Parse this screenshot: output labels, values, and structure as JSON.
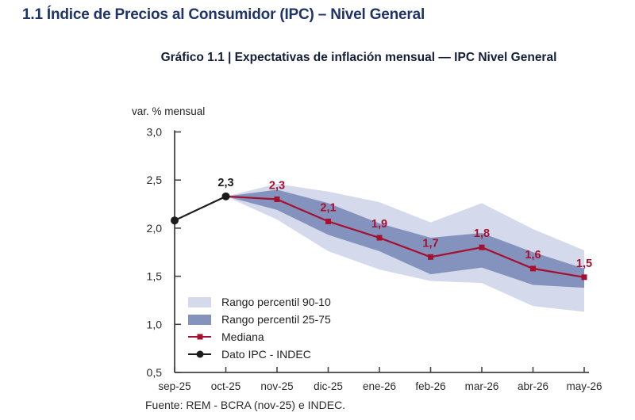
{
  "page": {
    "section_title": "1.1 Índice de Precios al Consumidor (IPC) – Nivel General",
    "chart_title": "Gráfico 1.1 | Expectativas de inflación mensual — IPC Nivel General",
    "source": "Fuente: REM - BCRA (nov-25) e INDEC."
  },
  "colors": {
    "title_navy": "#1e3468",
    "subtitle_navy": "#141d38",
    "band_light": "#d4daec",
    "band_dark": "#8393bd",
    "median_red": "#a61030",
    "ipc_black": "#1c1c1c",
    "axis_gray": "#454545",
    "tick_text": "#2b2b2b"
  },
  "chart_data": {
    "type": "line",
    "subtype": "fan-chart",
    "title": "Gráfico 1.1 | Expectativas de inflación mensual — IPC Nivel General",
    "xlabel": "",
    "ylabel": "var. % mensual",
    "ylim": [
      0.5,
      3.0
    ],
    "grid": false,
    "legend_position": "inside lower-left",
    "categories": [
      "sep-25",
      "oct-25",
      "nov-25",
      "dic-25",
      "ene-26",
      "feb-26",
      "mar-26",
      "abr-26",
      "may-26"
    ],
    "yticks": [
      {
        "value": 3.0,
        "label": "3,0"
      },
      {
        "value": 2.5,
        "label": "2,5"
      },
      {
        "value": 2.0,
        "label": "2,0"
      },
      {
        "value": 1.5,
        "label": "1,5"
      },
      {
        "value": 1.0,
        "label": "1,0"
      },
      {
        "value": 0.5,
        "label": "0,5"
      }
    ],
    "series": [
      {
        "name": "Mediana",
        "color": "#a61030",
        "marker": "square",
        "start_index": 1,
        "values": [
          2.33,
          2.3,
          2.07,
          1.9,
          1.7,
          1.8,
          1.58,
          1.49
        ],
        "point_labels": [
          null,
          "2,3",
          "2,1",
          "1,9",
          "1,7",
          "1,8",
          "1,6",
          "1,5"
        ]
      },
      {
        "name": "Dato IPC - INDEC",
        "color": "#1c1c1c",
        "marker": "circle",
        "start_index": 0,
        "values": [
          2.08,
          2.33
        ],
        "point_labels": [
          null,
          "2,3"
        ]
      }
    ],
    "bands": [
      {
        "name": "Rango percentil 90-10",
        "color": "#d4daec",
        "start_index": 1,
        "upper": [
          2.33,
          2.46,
          2.38,
          2.27,
          2.06,
          2.26,
          1.99,
          1.77
        ],
        "lower": [
          2.33,
          2.09,
          1.76,
          1.57,
          1.45,
          1.43,
          1.19,
          1.13
        ]
      },
      {
        "name": "Rango percentil 25-75",
        "color": "#8393bd",
        "start_index": 1,
        "upper": [
          2.33,
          2.4,
          2.26,
          2.05,
          1.9,
          1.95,
          1.75,
          1.58
        ],
        "lower": [
          2.33,
          2.19,
          1.93,
          1.76,
          1.52,
          1.59,
          1.41,
          1.38
        ]
      }
    ],
    "legend": [
      {
        "label": "Rango percentil 90-10",
        "swatch": "band-light"
      },
      {
        "label": "Rango percentil 25-75",
        "swatch": "band-dark"
      },
      {
        "label": "Mediana",
        "swatch": "line-square"
      },
      {
        "label": "Dato IPC - INDEC",
        "swatch": "line-circle"
      }
    ]
  }
}
